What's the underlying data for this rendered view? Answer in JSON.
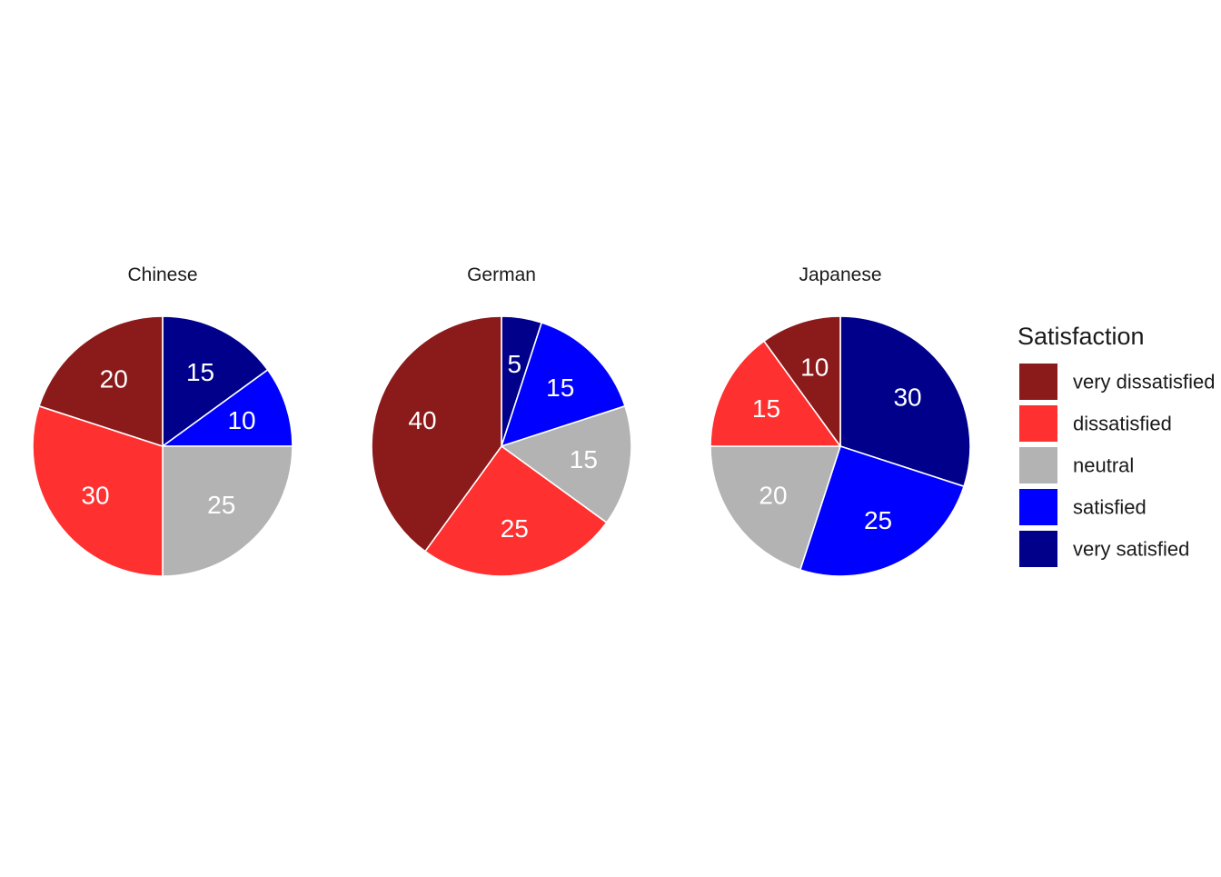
{
  "chart_data": {
    "type": "pie",
    "categories": [
      "very dissatisfied",
      "dissatisfied",
      "neutral",
      "satisfied",
      "very satisfied"
    ],
    "colors": {
      "very dissatisfied": "#8B1A1A",
      "dissatisfied": "#FF3030",
      "neutral": "#B3B3B3",
      "satisfied": "#0000FF",
      "very satisfied": "#00008B"
    },
    "legend": {
      "title": "Satisfaction",
      "position": "right"
    },
    "facets": [
      {
        "name": "Chinese",
        "values": [
          {
            "category": "very dissatisfied",
            "value": 20
          },
          {
            "category": "dissatisfied",
            "value": 30
          },
          {
            "category": "neutral",
            "value": 25
          },
          {
            "category": "satisfied",
            "value": 10
          },
          {
            "category": "very satisfied",
            "value": 15
          }
        ]
      },
      {
        "name": "German",
        "values": [
          {
            "category": "very dissatisfied",
            "value": 40
          },
          {
            "category": "dissatisfied",
            "value": 25
          },
          {
            "category": "neutral",
            "value": 15
          },
          {
            "category": "satisfied",
            "value": 15
          },
          {
            "category": "very satisfied",
            "value": 5
          }
        ]
      },
      {
        "name": "Japanese",
        "values": [
          {
            "category": "very dissatisfied",
            "value": 10
          },
          {
            "category": "dissatisfied",
            "value": 15
          },
          {
            "category": "neutral",
            "value": 20
          },
          {
            "category": "satisfied",
            "value": 25
          },
          {
            "category": "very satisfied",
            "value": 30
          }
        ]
      }
    ]
  }
}
